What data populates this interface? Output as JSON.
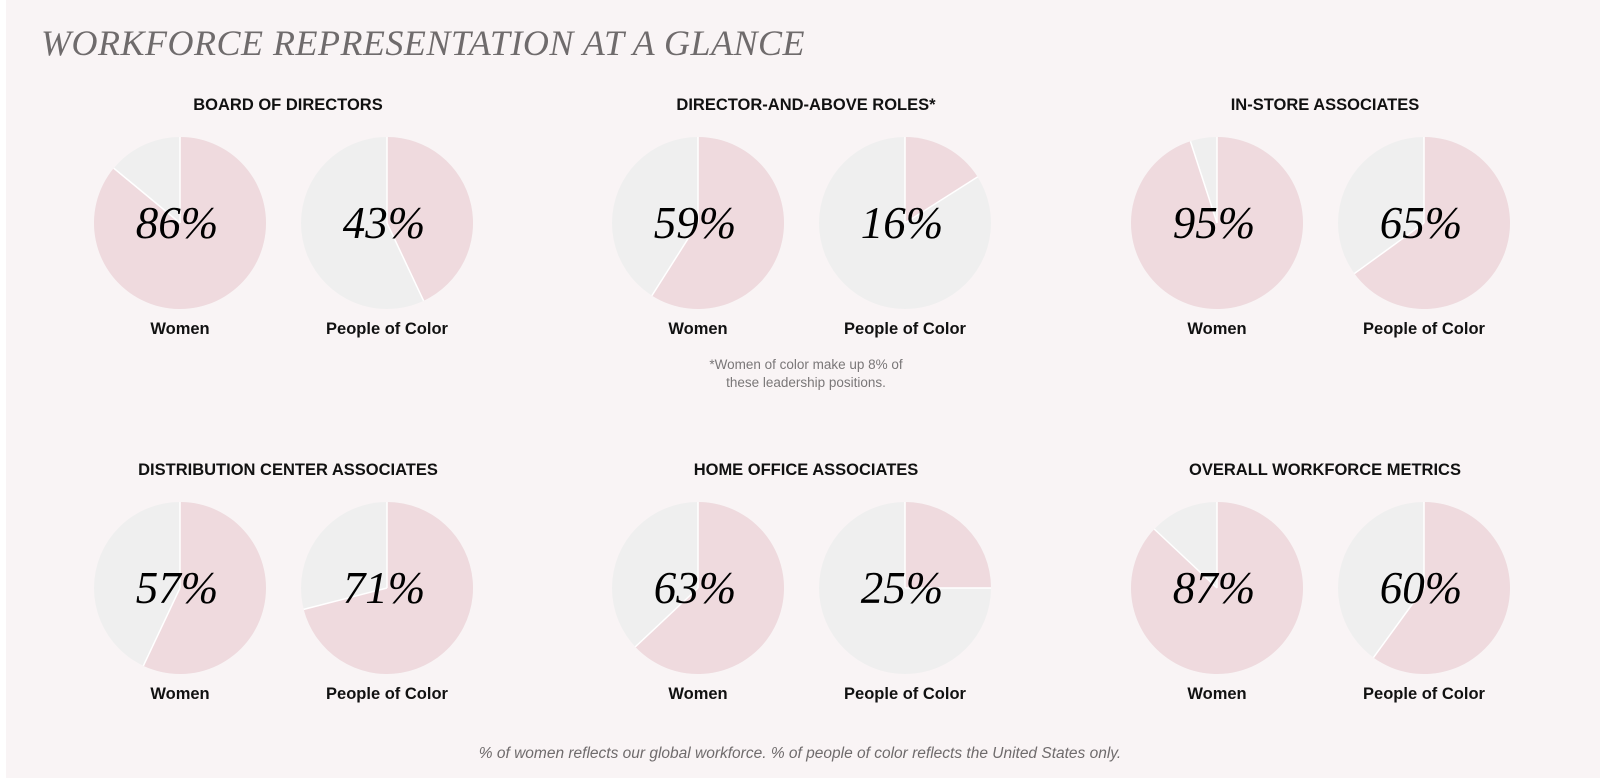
{
  "title": "WORKFORCE REPRESENTATION AT A GLANCE",
  "footnote_line1": "*Women of color make up 8% of",
  "footnote_line2": "these leadership positions.",
  "footer_note": "% of women reflects our global workforce. % of people of color reflects the United States only.",
  "colors": {
    "highlight": "#efdade",
    "remainder": "#efefef",
    "background": "#f9f4f5",
    "divider": "#ffffff"
  },
  "chart_data": [
    {
      "type": "pie",
      "title": "BOARD OF DIRECTORS",
      "series": [
        {
          "name": "Women",
          "value": 86,
          "display": "86%"
        },
        {
          "name": "People of Color",
          "value": 43,
          "display": "43%"
        }
      ]
    },
    {
      "type": "pie",
      "title": "DIRECTOR-AND-ABOVE ROLES*",
      "series": [
        {
          "name": "Women",
          "value": 59,
          "display": "59%"
        },
        {
          "name": "People of Color",
          "value": 16,
          "display": "16%"
        }
      ]
    },
    {
      "type": "pie",
      "title": "IN-STORE ASSOCIATES",
      "series": [
        {
          "name": "Women",
          "value": 95,
          "display": "95%"
        },
        {
          "name": "People of Color",
          "value": 65,
          "display": "65%"
        }
      ]
    },
    {
      "type": "pie",
      "title": "DISTRIBUTION CENTER ASSOCIATES",
      "series": [
        {
          "name": "Women",
          "value": 57,
          "display": "57%"
        },
        {
          "name": "People of Color",
          "value": 71,
          "display": "71%"
        }
      ]
    },
    {
      "type": "pie",
      "title": "HOME OFFICE ASSOCIATES",
      "series": [
        {
          "name": "Women",
          "value": 63,
          "display": "63%"
        },
        {
          "name": "People of Color",
          "value": 25,
          "display": "25%"
        }
      ]
    },
    {
      "type": "pie",
      "title": "OVERALL WORKFORCE METRICS",
      "series": [
        {
          "name": "Women",
          "value": 87,
          "display": "87%"
        },
        {
          "name": "People of Color",
          "value": 60,
          "display": "60%"
        }
      ]
    }
  ]
}
